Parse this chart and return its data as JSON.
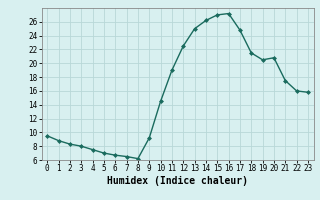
{
  "x": [
    0,
    1,
    2,
    3,
    4,
    5,
    6,
    7,
    8,
    9,
    10,
    11,
    12,
    13,
    14,
    15,
    16,
    17,
    18,
    19,
    20,
    21,
    22,
    23
  ],
  "y": [
    9.5,
    8.8,
    8.3,
    8.0,
    7.5,
    7.0,
    6.7,
    6.5,
    6.2,
    9.2,
    14.5,
    19.0,
    22.5,
    25.0,
    26.2,
    27.0,
    27.2,
    24.8,
    21.5,
    20.5,
    20.8,
    17.5,
    16.0,
    15.8
  ],
  "xlabel": "Humidex (Indice chaleur)",
  "ylim": [
    6,
    28
  ],
  "xlim": [
    -0.5,
    23.5
  ],
  "yticks": [
    6,
    8,
    10,
    12,
    14,
    16,
    18,
    20,
    22,
    24,
    26
  ],
  "xticks": [
    0,
    1,
    2,
    3,
    4,
    5,
    6,
    7,
    8,
    9,
    10,
    11,
    12,
    13,
    14,
    15,
    16,
    17,
    18,
    19,
    20,
    21,
    22,
    23
  ],
  "line_color": "#1a6b5e",
  "marker_color": "#1a6b5e",
  "bg_color": "#d8f0f0",
  "grid_color": "#b8d8d8",
  "axis_color": "#888888",
  "xlabel_fontsize": 7,
  "tick_fontsize": 5.5
}
